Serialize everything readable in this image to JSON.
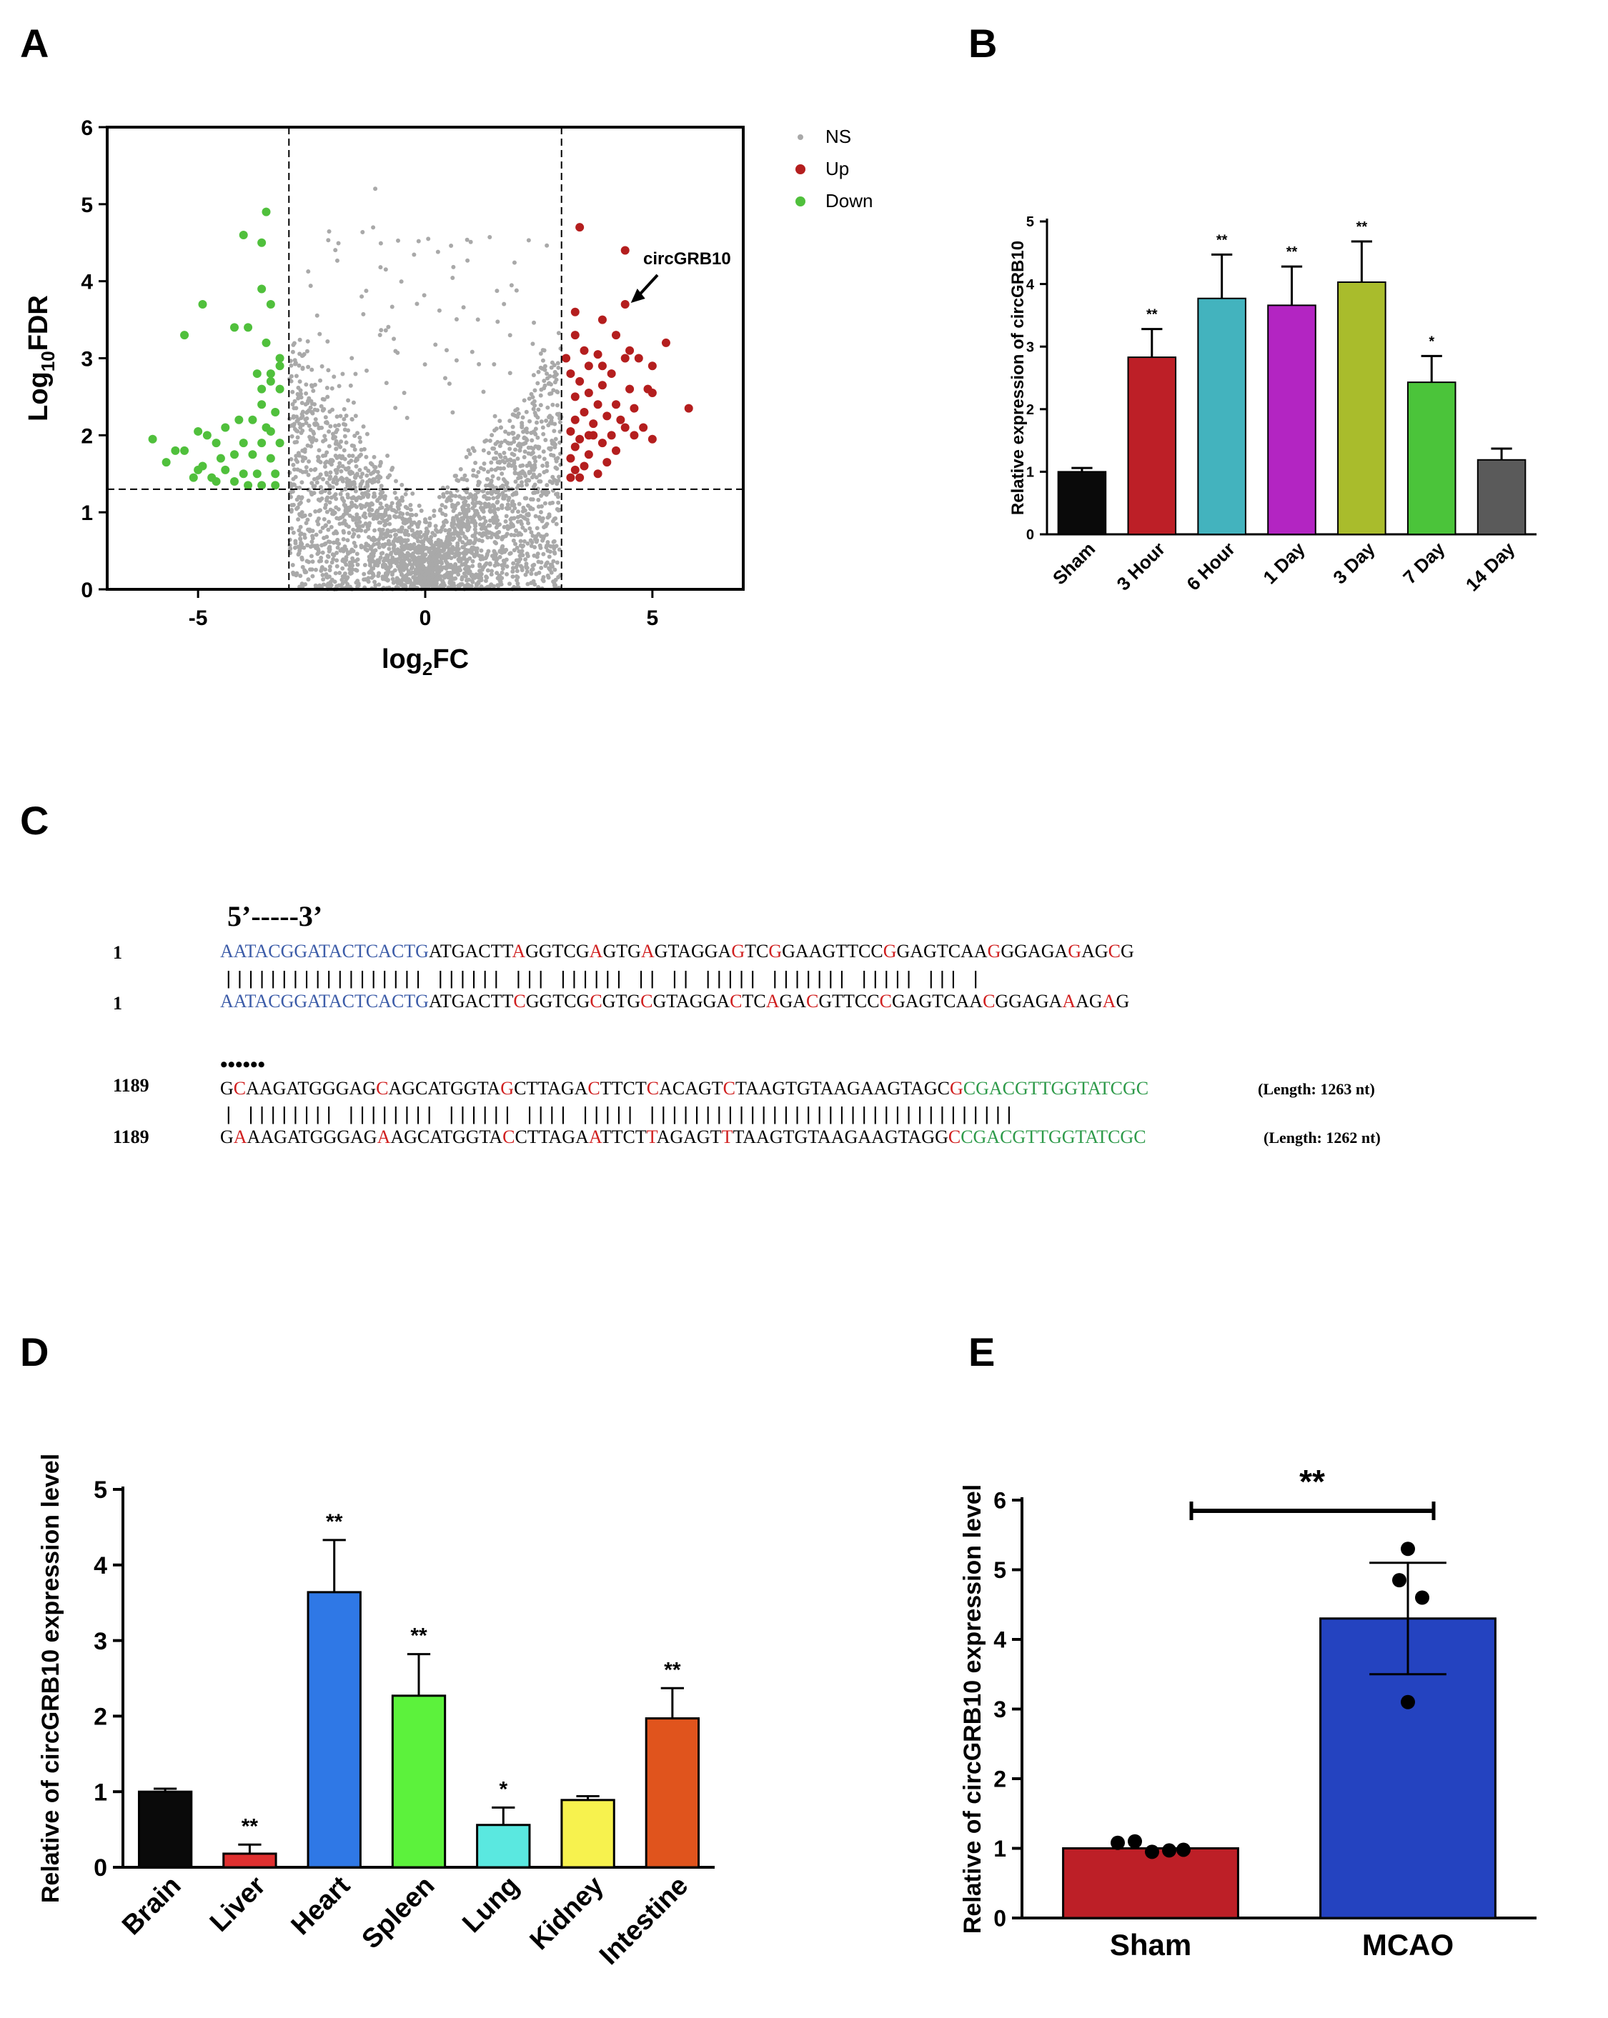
{
  "panels": {
    "a": "A",
    "b": "B",
    "c": "C",
    "d": "D",
    "e": "E"
  },
  "chart_data": [
    {
      "id": "A",
      "type": "scatter",
      "title": "",
      "xlabel": "log2FC",
      "ylabel": "Log10FDR",
      "xlim": [
        -7,
        7
      ],
      "ylim": [
        0,
        6
      ],
      "xticks": [
        -5,
        0,
        5
      ],
      "yticks": [
        0,
        1,
        2,
        3,
        4,
        5,
        6
      ],
      "threshold_lines": {
        "x": [
          -3,
          3
        ],
        "y": [
          1.3
        ]
      },
      "legend": {
        "position": "top-right",
        "entries": [
          {
            "name": "NS",
            "color": "#a9a9a9"
          },
          {
            "name": "Up",
            "color": "#b41e1e"
          },
          {
            "name": "Down",
            "color": "#50c03c"
          }
        ]
      },
      "annotation": {
        "text": "circGRB10",
        "x": 4.4,
        "y": 3.7
      },
      "series": [
        {
          "name": "Down",
          "color": "#50c03c",
          "points": [
            [
              -3.5,
              4.9
            ],
            [
              -4,
              4.6
            ],
            [
              -3.6,
              4.5
            ],
            [
              -3.6,
              3.9
            ],
            [
              -3.4,
              3.7
            ],
            [
              -4.9,
              3.7
            ],
            [
              -3.9,
              3.4
            ],
            [
              -4.2,
              3.4
            ],
            [
              -5.3,
              3.3
            ],
            [
              -3.5,
              3.2
            ],
            [
              -3.2,
              3.0
            ],
            [
              -3.2,
              2.9
            ],
            [
              -3.4,
              2.8
            ],
            [
              -3.4,
              2.7
            ],
            [
              -3.6,
              2.6
            ],
            [
              -3.7,
              2.8
            ],
            [
              -3.2,
              2.6
            ],
            [
              -3.6,
              2.4
            ],
            [
              -3.3,
              2.3
            ],
            [
              -4.1,
              2.2
            ],
            [
              -3.8,
              2.2
            ],
            [
              -3.5,
              2.1
            ],
            [
              -3.4,
              2.05
            ],
            [
              -4.4,
              2.1
            ],
            [
              -4.8,
              2.0
            ],
            [
              -5,
              2.05
            ],
            [
              -4.6,
              1.9
            ],
            [
              -4,
              1.9
            ],
            [
              -3.6,
              1.9
            ],
            [
              -3.2,
              1.9
            ],
            [
              -6,
              1.95
            ],
            [
              -5.3,
              1.8
            ],
            [
              -4.5,
              1.7
            ],
            [
              -4.2,
              1.75
            ],
            [
              -3.8,
              1.75
            ],
            [
              -3.4,
              1.7
            ],
            [
              -5.5,
              1.8
            ],
            [
              -4.9,
              1.6
            ],
            [
              -4.4,
              1.55
            ],
            [
              -4.0,
              1.5
            ],
            [
              -3.7,
              1.5
            ],
            [
              -3.3,
              1.5
            ],
            [
              -5.7,
              1.65
            ],
            [
              -5.0,
              1.55
            ],
            [
              -4.7,
              1.45
            ],
            [
              -4.2,
              1.4
            ],
            [
              -3.9,
              1.35
            ],
            [
              -3.6,
              1.35
            ],
            [
              -3.3,
              1.35
            ],
            [
              -4.6,
              1.4
            ],
            [
              -5.1,
              1.45
            ]
          ]
        },
        {
          "name": "Up",
          "color": "#b41e1e",
          "points": [
            [
              3.4,
              4.7
            ],
            [
              4.4,
              4.4
            ],
            [
              4.4,
              3.7
            ],
            [
              3.3,
              3.6
            ],
            [
              3.9,
              3.5
            ],
            [
              4.2,
              3.3
            ],
            [
              5.3,
              3.2
            ],
            [
              3.3,
              3.3
            ],
            [
              3.5,
              3.1
            ],
            [
              3.8,
              3.05
            ],
            [
              4.4,
              3.0
            ],
            [
              4.7,
              3.0
            ],
            [
              5.0,
              2.9
            ],
            [
              3.6,
              2.9
            ],
            [
              3.2,
              2.8
            ],
            [
              4.1,
              2.8
            ],
            [
              3.4,
              2.7
            ],
            [
              3.9,
              2.65
            ],
            [
              4.5,
              2.6
            ],
            [
              3.6,
              2.55
            ],
            [
              4.9,
              2.6
            ],
            [
              5.0,
              2.55
            ],
            [
              3.3,
              2.5
            ],
            [
              3.8,
              2.4
            ],
            [
              4.2,
              2.4
            ],
            [
              4.6,
              2.35
            ],
            [
              5.8,
              2.35
            ],
            [
              3.5,
              2.3
            ],
            [
              4.0,
              2.25
            ],
            [
              3.3,
              2.2
            ],
            [
              3.7,
              2.15
            ],
            [
              4.4,
              2.1
            ],
            [
              4.8,
              2.1
            ],
            [
              3.2,
              2.05
            ],
            [
              3.6,
              2.0
            ],
            [
              4.1,
              2.0
            ],
            [
              4.6,
              2.0
            ],
            [
              3.4,
              1.95
            ],
            [
              3.9,
              1.9
            ],
            [
              5.0,
              1.95
            ],
            [
              3.3,
              1.85
            ],
            [
              4.2,
              1.8
            ],
            [
              3.6,
              1.75
            ],
            [
              3.2,
              1.7
            ],
            [
              4.0,
              1.65
            ],
            [
              3.5,
              1.6
            ],
            [
              3.3,
              1.55
            ],
            [
              3.8,
              1.5
            ],
            [
              3.4,
              1.45
            ],
            [
              3.2,
              1.45
            ],
            [
              3.7,
              2.0
            ],
            [
              4.3,
              2.2
            ],
            [
              4.5,
              3.1
            ],
            [
              3.9,
              2.9
            ],
            [
              3.1,
              3.0
            ]
          ]
        }
      ]
    },
    {
      "id": "B",
      "type": "bar",
      "title": "",
      "xlabel": "",
      "ylabel": "Relative expression of circGRB10",
      "ylim": [
        0,
        5
      ],
      "yticks": [
        0,
        1,
        2,
        3,
        4,
        5
      ],
      "categories": [
        "Sham",
        "3 Hour",
        "6 Hour",
        "1 Day",
        "3 Day",
        "7 Day",
        "14 Day"
      ],
      "values": [
        1.0,
        2.83,
        3.77,
        3.66,
        4.03,
        2.43,
        1.19
      ],
      "errors": [
        0.06,
        0.45,
        0.7,
        0.62,
        0.65,
        0.42,
        0.18
      ],
      "colors": [
        "#0a0a0a",
        "#bd1f27",
        "#43b3be",
        "#b325c2",
        "#a9bc2c",
        "#4bc43a",
        "#5a5a5a"
      ],
      "significance": [
        "",
        "**",
        "**",
        "**",
        "**",
        "*",
        ""
      ]
    },
    {
      "id": "D",
      "type": "bar",
      "title": "",
      "xlabel": "",
      "ylabel": "Relative of circGRB10 expression level",
      "ylim": [
        0,
        5
      ],
      "yticks": [
        0,
        1,
        2,
        3,
        4,
        5
      ],
      "categories": [
        "Brain",
        "Liver",
        "Heart",
        "Spleen",
        "Lung",
        "Kidney",
        "Intestine"
      ],
      "values": [
        1.0,
        0.18,
        3.64,
        2.27,
        0.56,
        0.89,
        1.97
      ],
      "errors": [
        0.04,
        0.12,
        0.69,
        0.55,
        0.23,
        0.05,
        0.4
      ],
      "colors": [
        "#0a0a0a",
        "#e03030",
        "#2f78e6",
        "#5cf23c",
        "#5ae8e0",
        "#f7f24e",
        "#e0541d"
      ],
      "significance": [
        "",
        "**",
        "**",
        "**",
        "*",
        "",
        "**"
      ]
    },
    {
      "id": "E",
      "type": "bar",
      "title": "",
      "xlabel": "",
      "ylabel": "Relative of circGRB10 expression level",
      "ylim": [
        0,
        6
      ],
      "yticks": [
        0,
        1,
        2,
        3,
        4,
        5,
        6
      ],
      "categories": [
        "Sham",
        "MCAO"
      ],
      "values": [
        1.0,
        4.3
      ],
      "errors": [
        0.0,
        0.8
      ],
      "colors": [
        "#bd1f27",
        "#2443c0"
      ],
      "points": [
        [
          1.08,
          1.1,
          0.95,
          0.97,
          0.98
        ],
        [
          5.3,
          4.85,
          4.6,
          3.1
        ]
      ],
      "significance_bracket": "**"
    }
  ],
  "sequence": {
    "header": "5’-----3’",
    "row1_num": "1",
    "row1_top": [
      {
        "t": "AATACGGATACTCACTG",
        "c": "#3c5ca8"
      },
      {
        "t": "ATGACTT",
        "c": "#000"
      },
      {
        "t": "A",
        "c": "#d01f1f"
      },
      {
        "t": "GGTCG",
        "c": "#000"
      },
      {
        "t": "A",
        "c": "#d01f1f"
      },
      {
        "t": "GTG",
        "c": "#000"
      },
      {
        "t": "A",
        "c": "#d01f1f"
      },
      {
        "t": "GTAGGA",
        "c": "#000"
      },
      {
        "t": "G",
        "c": "#d01f1f"
      },
      {
        "t": "TC",
        "c": "#000"
      },
      {
        "t": "G",
        "c": "#d01f1f"
      },
      {
        "t": "GAAGTTCC",
        "c": "#000"
      },
      {
        "t": "G",
        "c": "#d01f1f"
      },
      {
        "t": "GAGTCAA",
        "c": "#000"
      },
      {
        "t": "G",
        "c": "#d01f1f"
      },
      {
        "t": "GGAGA",
        "c": "#000"
      },
      {
        "t": "G",
        "c": "#d01f1f"
      },
      {
        "t": "AG",
        "c": "#000"
      },
      {
        "t": "C",
        "c": "#d01f1f"
      },
      {
        "t": "G",
        "c": "#000"
      }
    ],
    "row1_bars": "|||||||||||||||||| |||||| ||| |||||| ||  || ||||| ||||||| ||||| ||| |",
    "row1_bot": [
      {
        "t": "AATACGGATACTCACTG",
        "c": "#3c5ca8"
      },
      {
        "t": "ATGACTT",
        "c": "#000"
      },
      {
        "t": "C",
        "c": "#d01f1f"
      },
      {
        "t": "GGTCG",
        "c": "#000"
      },
      {
        "t": "C",
        "c": "#d01f1f"
      },
      {
        "t": "GTG",
        "c": "#000"
      },
      {
        "t": "C",
        "c": "#d01f1f"
      },
      {
        "t": "GTAGGA",
        "c": "#000"
      },
      {
        "t": "C",
        "c": "#d01f1f"
      },
      {
        "t": "TC",
        "c": "#000"
      },
      {
        "t": "A",
        "c": "#d01f1f"
      },
      {
        "t": "GA",
        "c": "#000"
      },
      {
        "t": "C",
        "c": "#d01f1f"
      },
      {
        "t": "GTTCC",
        "c": "#000"
      },
      {
        "t": "C",
        "c": "#d01f1f"
      },
      {
        "t": "GAGTCAA",
        "c": "#000"
      },
      {
        "t": "C",
        "c": "#d01f1f"
      },
      {
        "t": "GGAGA",
        "c": "#000"
      },
      {
        "t": "A",
        "c": "#d01f1f"
      },
      {
        "t": "AG",
        "c": "#000"
      },
      {
        "t": "A",
        "c": "#d01f1f"
      },
      {
        "t": "G",
        "c": "#000"
      }
    ],
    "dots": "••••••",
    "row2_num": "1189",
    "row2_top": [
      {
        "t": "G",
        "c": "#000"
      },
      {
        "t": "C",
        "c": "#d01f1f"
      },
      {
        "t": "AAGATGGGAG",
        "c": "#000"
      },
      {
        "t": "C",
        "c": "#d01f1f"
      },
      {
        "t": "AGCATGGTA",
        "c": "#000"
      },
      {
        "t": "G",
        "c": "#d01f1f"
      },
      {
        "t": "CTTAGA",
        "c": "#000"
      },
      {
        "t": "C",
        "c": "#d01f1f"
      },
      {
        "t": "TTCT",
        "c": "#000"
      },
      {
        "t": "C",
        "c": "#d01f1f"
      },
      {
        "t": "ACAGT",
        "c": "#000"
      },
      {
        "t": "C",
        "c": "#d01f1f"
      },
      {
        "t": "TAAGTGTAAGAAGTAGC",
        "c": "#000"
      },
      {
        "t": "G",
        "c": "#d01f1f"
      },
      {
        "t": "CGACGTTGGTATCGC",
        "c": "#2e9a4a"
      }
    ],
    "row2_len": "(Length: 1263 nt)",
    "row2_bars": "| |||||||| |||||||| |||||| |||| ||||| |||||||||||||||||||||||||||||||||",
    "row2_bot": [
      {
        "t": "G",
        "c": "#000"
      },
      {
        "t": "A",
        "c": "#d01f1f"
      },
      {
        "t": "AAGATGGGAG",
        "c": "#000"
      },
      {
        "t": "A",
        "c": "#d01f1f"
      },
      {
        "t": "AGCATGGTA",
        "c": "#000"
      },
      {
        "t": "C",
        "c": "#d01f1f"
      },
      {
        "t": "CTTAGA",
        "c": "#000"
      },
      {
        "t": "A",
        "c": "#d01f1f"
      },
      {
        "t": "TTCT",
        "c": "#000"
      },
      {
        "t": "T",
        "c": "#d01f1f"
      },
      {
        "t": "AGAGT",
        "c": "#000"
      },
      {
        "t": "T",
        "c": "#d01f1f"
      },
      {
        "t": "TAAGTGTAAGAAGTAGG",
        "c": "#000"
      },
      {
        "t": "C",
        "c": "#d01f1f"
      },
      {
        "t": "CGACGTTGGTATCGC",
        "c": "#2e9a4a"
      }
    ],
    "row2_bot_len": "(Length: 1262 nt)"
  }
}
